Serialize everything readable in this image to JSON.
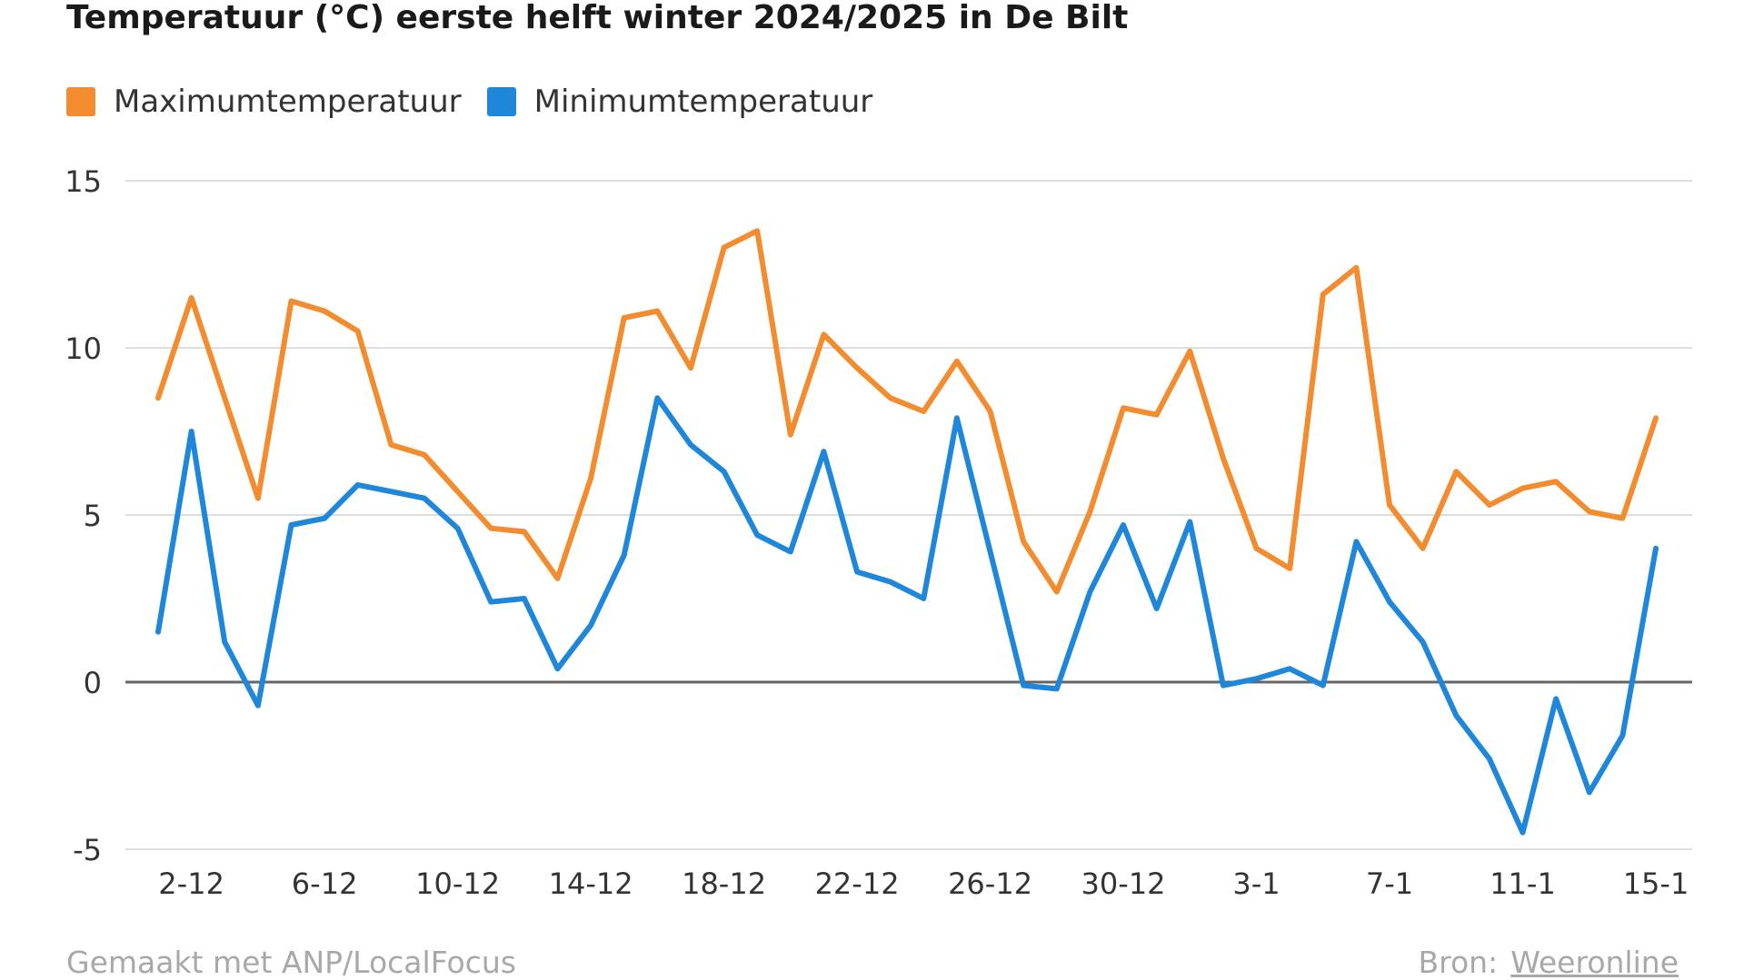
{
  "chart_data": {
    "type": "line",
    "title": "Temperatuur (°C) eerste helft winter 2024/2025 in De Bilt",
    "xlabel": "",
    "ylabel": "",
    "ylim": [
      -5,
      15
    ],
    "yticks": [
      15,
      10,
      5,
      0,
      -5
    ],
    "grid": true,
    "legend_position": "top-left",
    "x": [
      "1-12",
      "2-12",
      "3-12",
      "4-12",
      "5-12",
      "6-12",
      "7-12",
      "8-12",
      "9-12",
      "10-12",
      "11-12",
      "12-12",
      "13-12",
      "14-12",
      "15-12",
      "16-12",
      "17-12",
      "18-12",
      "19-12",
      "20-12",
      "21-12",
      "22-12",
      "23-12",
      "24-12",
      "25-12",
      "26-12",
      "27-12",
      "28-12",
      "29-12",
      "30-12",
      "31-12",
      "1-1",
      "2-1",
      "3-1",
      "4-1",
      "5-1",
      "6-1",
      "7-1",
      "8-1",
      "9-1",
      "10-1",
      "11-1",
      "12-1",
      "13-1",
      "14-1",
      "15-1"
    ],
    "x_tick_labels": [
      "2-12",
      "6-12",
      "10-12",
      "14-12",
      "18-12",
      "22-12",
      "26-12",
      "30-12",
      "3-1",
      "7-1",
      "11-1",
      "15-1"
    ],
    "series": [
      {
        "name": "Maximumtemperatuur",
        "color": "#f28c2e",
        "values": [
          8.5,
          11.5,
          8.5,
          5.5,
          11.4,
          11.1,
          10.5,
          7.1,
          6.8,
          5.7,
          4.6,
          4.5,
          3.1,
          6.1,
          10.9,
          11.1,
          9.4,
          13.0,
          13.5,
          7.4,
          10.4,
          9.4,
          8.5,
          8.1,
          9.6,
          8.1,
          4.2,
          2.7,
          5.1,
          8.2,
          8.0,
          9.9,
          6.7,
          4.0,
          3.4,
          11.6,
          12.4,
          5.3,
          4.0,
          6.3,
          5.3,
          5.8,
          6.0,
          5.1,
          4.9,
          7.9
        ]
      },
      {
        "name": "Minimumtemperatuur",
        "color": "#1e87d9",
        "values": [
          1.5,
          7.5,
          1.2,
          -0.7,
          4.7,
          4.9,
          5.9,
          5.7,
          5.5,
          4.6,
          2.4,
          2.5,
          0.4,
          1.7,
          3.8,
          8.5,
          7.1,
          6.3,
          4.4,
          3.9,
          6.9,
          3.3,
          3.0,
          2.5,
          7.9,
          3.9,
          -0.1,
          -0.2,
          2.7,
          4.7,
          2.2,
          4.8,
          -0.1,
          0.1,
          0.4,
          -0.1,
          4.2,
          2.4,
          1.2,
          -1.0,
          -2.3,
          -4.5,
          -0.5,
          -3.3,
          -1.6,
          4.0
        ]
      }
    ]
  },
  "legend": {
    "max_label": "Maximumtemperatuur",
    "min_label": "Minimumtemperatuur",
    "max_color": "#f28c2e",
    "min_color": "#1e87d9"
  },
  "footer": {
    "made_with": "Gemaakt met ANP/LocalFocus",
    "source_label": "Bron:",
    "source_link": "Weeronline"
  }
}
